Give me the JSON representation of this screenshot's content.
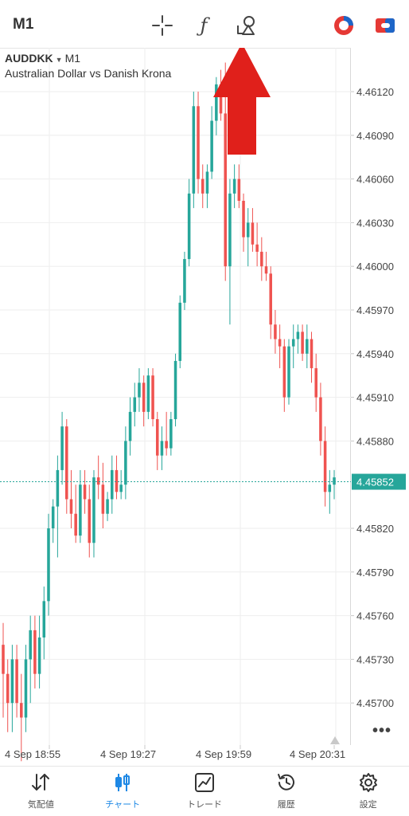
{
  "topbar": {
    "timeframe": "M1",
    "icons": [
      "crosshair-icon",
      "function-icon",
      "objects-icon",
      "one-click-trading-icon",
      "account-icon"
    ]
  },
  "symbol": {
    "name": "AUDDKK",
    "timeframe": "M1",
    "description": "Australian Dollar vs Danish Krona"
  },
  "price_axis": {
    "labels": [
      "4.46120",
      "4.46090",
      "4.46060",
      "4.46030",
      "4.46000",
      "4.45970",
      "4.45940",
      "4.45910",
      "4.45880",
      "4.45820",
      "4.45790",
      "4.45760",
      "4.45730",
      "4.45700"
    ]
  },
  "current_price": "4.45852",
  "time_axis": {
    "labels": [
      "4 Sep 18:55",
      "4 Sep 19:27",
      "4 Sep 19:59",
      "4 Sep 20:31"
    ]
  },
  "more_label": "•••",
  "colors": {
    "bull": "#26a69a",
    "bear": "#ef5350",
    "accent": "#1e88e5",
    "arrow": "#e0201b"
  },
  "chart_data": {
    "type": "candlestick",
    "x_range": [
      "4 Sep 18:55",
      "4 Sep 20:34"
    ],
    "ylim": [
      4.4568,
      4.4614
    ],
    "current": 4.45852,
    "ohlc": [
      [
        4.4574,
        4.45755,
        4.4569,
        4.4572
      ],
      [
        4.4572,
        4.4573,
        4.4568,
        4.457
      ],
      [
        4.457,
        4.4574,
        4.4568,
        4.4573
      ],
      [
        4.4573,
        4.4574,
        4.4569,
        4.457
      ],
      [
        4.457,
        4.4572,
        4.4566,
        4.4569
      ],
      [
        4.4569,
        4.4574,
        4.4568,
        4.4573
      ],
      [
        4.4573,
        4.4576,
        4.457,
        4.4575
      ],
      [
        4.4575,
        4.4576,
        4.4571,
        4.4572
      ],
      [
        4.4572,
        4.4576,
        4.4571,
        4.45745
      ],
      [
        4.45745,
        4.4578,
        4.4573,
        4.4577
      ],
      [
        4.4577,
        4.4583,
        4.4576,
        4.4582
      ],
      [
        4.4582,
        4.4584,
        4.4581,
        4.45835
      ],
      [
        4.45835,
        4.4587,
        4.458,
        4.4586
      ],
      [
        4.4586,
        4.459,
        4.4585,
        4.4589
      ],
      [
        4.4589,
        4.45895,
        4.4583,
        4.4584
      ],
      [
        4.4584,
        4.4586,
        4.4582,
        4.4583
      ],
      [
        4.4583,
        4.4585,
        4.4581,
        4.45815
      ],
      [
        4.45815,
        4.4586,
        4.4581,
        4.4585
      ],
      [
        4.4585,
        4.4586,
        4.4583,
        4.4584
      ],
      [
        4.4584,
        4.4585,
        4.458,
        4.4581
      ],
      [
        4.4581,
        4.4586,
        4.458,
        4.45855
      ],
      [
        4.45855,
        4.4587,
        4.4584,
        4.4585
      ],
      [
        4.4585,
        4.45865,
        4.4582,
        4.4583
      ],
      [
        4.4583,
        4.45845,
        4.45825,
        4.4584
      ],
      [
        4.4584,
        4.4587,
        4.4583,
        4.4586
      ],
      [
        4.4586,
        4.4587,
        4.4584,
        4.45845
      ],
      [
        4.45845,
        4.4586,
        4.4584,
        4.4585
      ],
      [
        4.4585,
        4.4589,
        4.4584,
        4.4588
      ],
      [
        4.4588,
        4.4591,
        4.4587,
        4.459
      ],
      [
        4.459,
        4.4592,
        4.4589,
        4.4591
      ],
      [
        4.4591,
        4.4593,
        4.459,
        4.4592
      ],
      [
        4.4592,
        4.45925,
        4.4589,
        4.459
      ],
      [
        4.459,
        4.4593,
        4.45895,
        4.45925
      ],
      [
        4.45925,
        4.4593,
        4.4589,
        4.45895
      ],
      [
        4.45895,
        4.459,
        4.4586,
        4.4587
      ],
      [
        4.4587,
        4.4589,
        4.4586,
        4.4588
      ],
      [
        4.4588,
        4.459,
        4.4587,
        4.45875
      ],
      [
        4.45875,
        4.459,
        4.4587,
        4.45895
      ],
      [
        4.45895,
        4.4594,
        4.4589,
        4.45935
      ],
      [
        4.45935,
        4.4598,
        4.4593,
        4.45975
      ],
      [
        4.45975,
        4.4601,
        4.4597,
        4.46005
      ],
      [
        4.46005,
        4.4606,
        4.46,
        4.4605
      ],
      [
        4.4605,
        4.4612,
        4.4604,
        4.4611
      ],
      [
        4.4611,
        4.4612,
        4.4605,
        4.4606
      ],
      [
        4.4606,
        4.4607,
        4.4604,
        4.4605
      ],
      [
        4.4605,
        4.4607,
        4.4604,
        4.46065
      ],
      [
        4.46065,
        4.4611,
        4.4606,
        4.461
      ],
      [
        4.461,
        4.4613,
        4.4609,
        4.46125
      ],
      [
        4.46125,
        4.46135,
        4.461,
        4.46105
      ],
      [
        4.46105,
        4.4614,
        4.4599,
        4.46
      ],
      [
        4.46,
        4.4606,
        4.4596,
        4.4605
      ],
      [
        4.4605,
        4.4607,
        4.4604,
        4.4606
      ],
      [
        4.4606,
        4.4607,
        4.4604,
        4.46045
      ],
      [
        4.46045,
        4.4605,
        4.4601,
        4.4602
      ],
      [
        4.4602,
        4.4604,
        4.46,
        4.4603
      ],
      [
        4.4603,
        4.4604,
        4.4601,
        4.46015
      ],
      [
        4.46015,
        4.4603,
        4.46,
        4.4601
      ],
      [
        4.4601,
        4.4602,
        4.4599,
        4.46
      ],
      [
        4.46,
        4.4601,
        4.4599,
        4.45995
      ],
      [
        4.45995,
        4.46,
        4.4595,
        4.4596
      ],
      [
        4.4596,
        4.4597,
        4.4594,
        4.4595
      ],
      [
        4.4595,
        4.4596,
        4.4593,
        4.45945
      ],
      [
        4.45945,
        4.4595,
        4.459,
        4.4591
      ],
      [
        4.4591,
        4.4595,
        4.45905,
        4.45945
      ],
      [
        4.45945,
        4.4596,
        4.4593,
        4.4595
      ],
      [
        4.4595,
        4.4596,
        4.4594,
        4.45955
      ],
      [
        4.45955,
        4.4596,
        4.45935,
        4.4594
      ],
      [
        4.4594,
        4.4596,
        4.4593,
        4.4595
      ],
      [
        4.4595,
        4.45955,
        4.4592,
        4.4593
      ],
      [
        4.4593,
        4.4594,
        4.459,
        4.4591
      ],
      [
        4.4591,
        4.4592,
        4.4587,
        4.4588
      ],
      [
        4.4588,
        4.4589,
        4.45835,
        4.45845
      ],
      [
        4.45845,
        4.4586,
        4.4583,
        4.4585
      ],
      [
        4.4585,
        4.4586,
        4.4584,
        4.45855
      ]
    ]
  },
  "bottom_nav": {
    "items": [
      {
        "label": "気配値",
        "icon": "quotes-icon"
      },
      {
        "label": "チャート",
        "icon": "chart-icon",
        "active": true
      },
      {
        "label": "トレード",
        "icon": "trade-icon"
      },
      {
        "label": "履歴",
        "icon": "history-icon"
      },
      {
        "label": "設定",
        "icon": "settings-icon"
      }
    ]
  }
}
